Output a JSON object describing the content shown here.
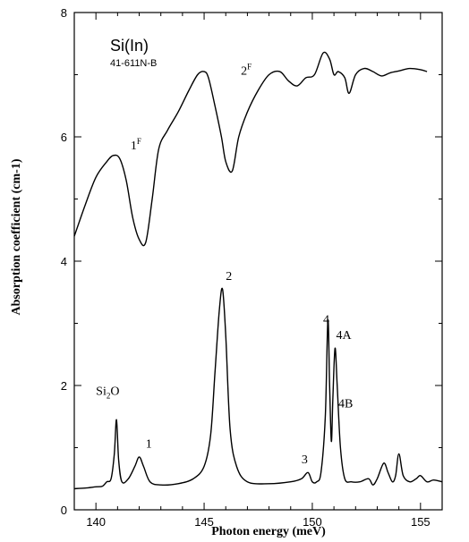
{
  "chart_data": {
    "type": "line",
    "title": "Si(In)",
    "subtitle": "41-611N-B",
    "xlabel": "Photon energy (meV)",
    "ylabel": "Absorption coefficient (cm-1)",
    "xlim": [
      139,
      156
    ],
    "ylim": [
      0,
      8
    ],
    "x_ticks": [
      140,
      145,
      150,
      155
    ],
    "y_ticks": [
      0,
      2,
      4,
      6,
      8
    ],
    "x_tick_labels": [
      "140",
      "145",
      "150",
      "155"
    ],
    "y_tick_labels": [
      "0",
      "2",
      "4",
      "6",
      "8"
    ],
    "grid": false,
    "series": [
      {
        "x": [
          139.0,
          139.5,
          140.0,
          140.5,
          140.8,
          141.1,
          141.4,
          141.7,
          142.0,
          142.3,
          142.6,
          142.9,
          143.3,
          143.8,
          144.3,
          144.7,
          145.0,
          145.2,
          145.5,
          145.8,
          146.0,
          146.3,
          146.6,
          147.0,
          147.5,
          148.0,
          148.5,
          148.9,
          149.3,
          149.7,
          150.1,
          150.5,
          150.8,
          151.0,
          151.2,
          151.5,
          151.7,
          152.0,
          152.4,
          152.8,
          153.2,
          153.6,
          154.0,
          154.5,
          155.0,
          155.3
        ],
        "y": [
          4.4,
          4.9,
          5.35,
          5.6,
          5.7,
          5.65,
          5.3,
          4.7,
          4.35,
          4.3,
          5.0,
          5.8,
          6.1,
          6.4,
          6.75,
          7.0,
          7.05,
          6.95,
          6.5,
          6.0,
          5.6,
          5.45,
          6.0,
          6.4,
          6.75,
          7.0,
          7.05,
          6.9,
          6.82,
          6.95,
          7.0,
          7.35,
          7.25,
          7.0,
          7.05,
          6.95,
          6.7,
          7.0,
          7.1,
          7.05,
          6.98,
          7.03,
          7.06,
          7.1,
          7.08,
          7.05
        ]
      },
      {
        "x": [
          139.0,
          139.5,
          140.0,
          140.3,
          140.5,
          140.7,
          140.85,
          140.95,
          141.05,
          141.2,
          141.5,
          141.8,
          142.0,
          142.2,
          142.5,
          143.0,
          143.8,
          144.5,
          145.0,
          145.3,
          145.5,
          145.7,
          145.85,
          146.0,
          146.2,
          146.5,
          147.0,
          148.0,
          149.0,
          149.5,
          149.8,
          150.0,
          150.2,
          150.4,
          150.6,
          150.72,
          150.8,
          150.88,
          150.95,
          151.05,
          151.15,
          151.3,
          151.5,
          151.8,
          152.2,
          152.6,
          152.8,
          153.0,
          153.3,
          153.5,
          153.7,
          153.85,
          154.0,
          154.2,
          154.5,
          154.8,
          155.0,
          155.3,
          155.6,
          156.0
        ],
        "y": [
          0.34,
          0.35,
          0.37,
          0.38,
          0.45,
          0.5,
          0.9,
          1.45,
          0.8,
          0.45,
          0.5,
          0.7,
          0.85,
          0.7,
          0.45,
          0.4,
          0.42,
          0.5,
          0.7,
          1.2,
          2.2,
          3.2,
          3.55,
          2.8,
          1.3,
          0.7,
          0.45,
          0.42,
          0.45,
          0.5,
          0.6,
          0.45,
          0.45,
          0.6,
          1.5,
          3.05,
          2.0,
          1.1,
          1.8,
          2.6,
          2.0,
          1.0,
          0.5,
          0.45,
          0.45,
          0.5,
          0.4,
          0.5,
          0.75,
          0.6,
          0.45,
          0.55,
          0.9,
          0.55,
          0.45,
          0.5,
          0.55,
          0.45,
          0.48,
          0.45
        ]
      }
    ],
    "annotations": [
      {
        "text": "1",
        "sup": "F",
        "x": 141.6,
        "y": 5.8
      },
      {
        "text": "2",
        "sup": "F",
        "x": 146.7,
        "y": 7.0
      },
      {
        "text": "2",
        "sup": "",
        "x": 146.0,
        "y": 3.7
      },
      {
        "text": "1",
        "sup": "",
        "x": 142.3,
        "y": 1.0
      },
      {
        "text": "3",
        "sup": "",
        "x": 149.5,
        "y": 0.75
      },
      {
        "text": "4",
        "sup": "",
        "x": 150.5,
        "y": 3.0
      },
      {
        "text": "4A",
        "sup": "",
        "x": 151.1,
        "y": 2.75
      },
      {
        "text": "4B",
        "sup": "",
        "x": 151.2,
        "y": 1.65
      }
    ],
    "annotation_si2o": {
      "text": "Si",
      "sub": "2",
      "rest": "O",
      "x": 140.0,
      "y": 1.85
    },
    "colors": {
      "line": "#000000",
      "background": "#ffffff"
    }
  }
}
